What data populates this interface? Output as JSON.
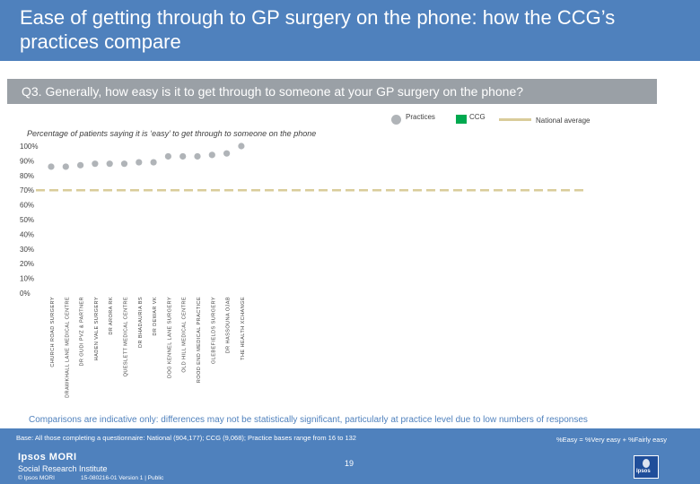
{
  "title": "Ease of getting through to GP surgery on the phone: how the CCG’s practices compare",
  "question": "Q3. Generally, how easy is it to get through to someone at your GP surgery on the phone?",
  "legend": {
    "practices": "Practices",
    "ccg": "CCG",
    "national": "National average"
  },
  "subtitle": "Percentage of patients saying it is ‘easy’ to get through to someone on the phone",
  "note": "Comparisons are indicative only: differences may not be statistically significant, particularly at practice level due to low numbers of responses",
  "footer": {
    "base": "Base: All those completing a questionnaire: National (904,177); CCG (9,068); Practice bases range from 16 to 132",
    "easy_definition": "%Easy = %Very easy + %Fairly easy",
    "page_number": "19",
    "logo_name": "Ipsos MORI",
    "logo_sub": "Social Research Institute",
    "copyright": "© Ipsos MORI",
    "version": "15-080216-01 Version 1 | Public",
    "corner_logo": "Ipsos"
  },
  "colors": {
    "header": "#4f81bd",
    "practice_marker": "#b0b4b8",
    "ccg": "#00a94f",
    "national_line": "#d9cc9a",
    "question_bar": "#9aa0a6"
  },
  "chart_data": {
    "type": "scatter",
    "categories": [
      "CHURCH ROAD SURGERY",
      "DRAWKHALL LANE MEDICAL CENTRE",
      "DR GUDI PVZ & PARTNER",
      "HADEN VALE SURGERY",
      "DR ARORA RK",
      "QUESLETT MEDICAL CENTRE",
      "DR BHADAURIA BS",
      "DR DEWAR VK",
      "DOG KENNEL LANE SURGERY",
      "OLD HILL MEDICAL CENTRE",
      "ROOD END MEDICAL PRACTICE",
      "GLEBEFIELDS SURGERY",
      "DR HASSOUNA OJAB",
      "THE HEALTH XCHANGE"
    ],
    "series": [
      {
        "name": "Practices",
        "values": [
          86,
          86,
          87,
          88,
          88,
          88,
          89,
          89,
          93,
          93,
          93,
          94,
          95,
          100
        ]
      }
    ],
    "national_average": 70,
    "y_ticks": [
      "0%",
      "10%",
      "20%",
      "30%",
      "40%",
      "50%",
      "60%",
      "70%",
      "80%",
      "90%",
      "100%"
    ],
    "ylim": [
      0,
      100
    ],
    "grid": false,
    "legend_position": "top-right"
  }
}
